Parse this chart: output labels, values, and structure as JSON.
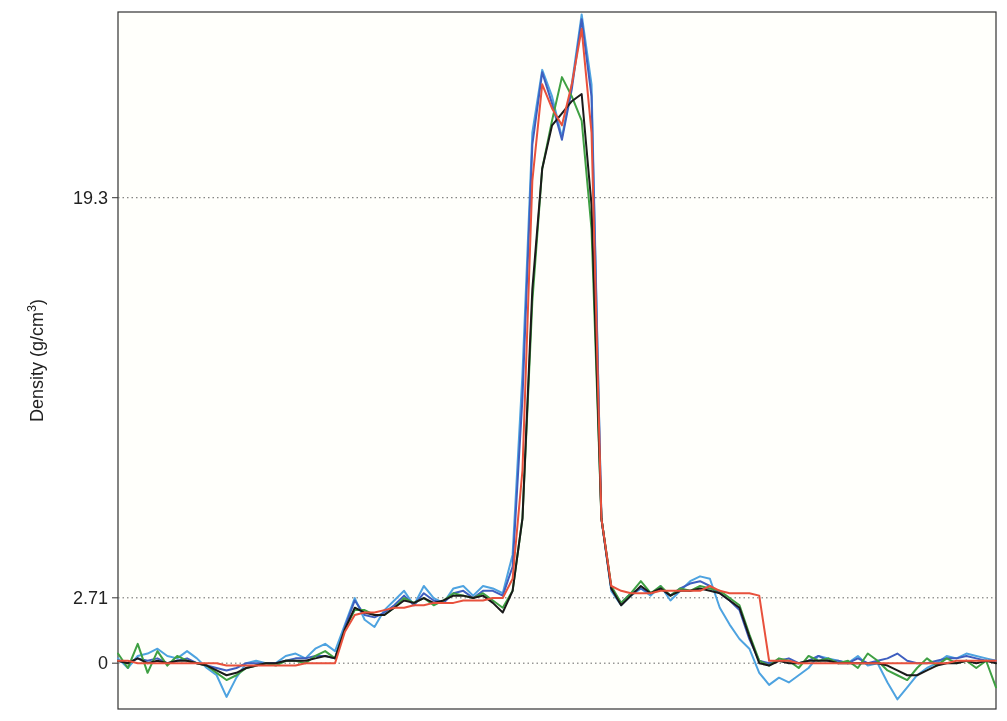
{
  "chart_data": {
    "type": "line",
    "ylabel": "Density (g/cm$^{3}$)",
    "categories": [
      null,
      null,
      null,
      null,
      null,
      null,
      null,
      null,
      null,
      null,
      null,
      null,
      null,
      null,
      null,
      null,
      null,
      null,
      null,
      null,
      null,
      null,
      null,
      null,
      null,
      null,
      null,
      null,
      null,
      null,
      null,
      null,
      null,
      null,
      null,
      null,
      null,
      null,
      null,
      null,
      null,
      null,
      null,
      null,
      null,
      null,
      null,
      null,
      null,
      null,
      null,
      null,
      null,
      null,
      null,
      null,
      null,
      null,
      null,
      null,
      null,
      null,
      null,
      null,
      null,
      null,
      null,
      null,
      null,
      null,
      null,
      null,
      null,
      null,
      null,
      null,
      null,
      null,
      null,
      null,
      null,
      null,
      null,
      null,
      null,
      null,
      null,
      null,
      null,
      null
    ],
    "ylim": [
      -1.9,
      27
    ],
    "yticks": [
      0,
      2.71,
      19.3
    ],
    "grid": "y",
    "line_style": "solid",
    "marker": "none",
    "series": [
      {
        "color": "#4ea3e0",
        "values": [
          0.2,
          -0.2,
          0.3,
          0.4,
          0.6,
          0.3,
          0.2,
          0.5,
          0.2,
          -0.2,
          -0.5,
          -1.4,
          -0.6,
          0,
          0.1,
          0,
          0,
          0.3,
          0.4,
          0.2,
          0.6,
          0.8,
          0.5,
          1.6,
          2.7,
          1.8,
          1.5,
          2.2,
          2.6,
          3.0,
          2.4,
          3.2,
          2.7,
          2.5,
          3.1,
          3.2,
          2.8,
          3.2,
          3.1,
          2.9,
          4.5,
          12,
          22,
          24.6,
          23.5,
          21.8,
          24,
          26.9,
          24,
          6,
          3.0,
          2.4,
          2.8,
          3.1,
          2.8,
          3.2,
          2.6,
          3.0,
          3.4,
          3.6,
          3.5,
          2.3,
          1.6,
          1.0,
          0.6,
          -0.4,
          -0.9,
          -0.6,
          -0.8,
          -0.5,
          -0.2,
          0.3,
          0.2,
          0.1,
          0,
          0.3,
          -0.1,
          0,
          -0.8,
          -1.5,
          -1.0,
          -0.5,
          -0.2,
          0,
          0.3,
          0.2,
          0.4,
          0.3,
          0.2,
          0.1
        ]
      },
      {
        "color": "#3f5fbf",
        "values": [
          0.1,
          0,
          0.2,
          0.1,
          0.2,
          0,
          0.1,
          0.2,
          0,
          -0.1,
          -0.2,
          -0.3,
          -0.2,
          0,
          0,
          0,
          0,
          0.1,
          0.2,
          0.2,
          0.3,
          0.3,
          0.2,
          1.5,
          2.6,
          2.0,
          1.9,
          2.1,
          2.4,
          2.8,
          2.4,
          2.9,
          2.6,
          2.5,
          2.9,
          3.0,
          2.7,
          3.0,
          3.0,
          2.8,
          4,
          11,
          21.5,
          24.5,
          23.2,
          21.7,
          23.8,
          26.7,
          23.5,
          6,
          3.1,
          2.5,
          2.9,
          3.1,
          2.9,
          3.1,
          2.8,
          3.1,
          3.3,
          3.4,
          3.2,
          2.9,
          2.6,
          2.2,
          1.0,
          0.1,
          0,
          0.1,
          0.2,
          0,
          0.1,
          0.3,
          0.1,
          0.1,
          0,
          0.2,
          0,
          0.1,
          0.2,
          0.4,
          0.1,
          0,
          0,
          0.1,
          0.2,
          0.2,
          0.3,
          0.2,
          0.1,
          0.1
        ]
      },
      {
        "color": "#3fa043",
        "values": [
          0.4,
          -0.2,
          0.8,
          -0.4,
          0.5,
          -0.1,
          0.3,
          0.1,
          0,
          -0.1,
          -0.4,
          -0.7,
          -0.5,
          -0.2,
          -0.1,
          0,
          -0.1,
          0.1,
          0.1,
          0,
          0.3,
          0.5,
          0.2,
          1.4,
          2.2,
          2.2,
          2.0,
          2.0,
          2.3,
          2.7,
          2.5,
          2.7,
          2.4,
          2.6,
          2.9,
          2.8,
          2.7,
          2.9,
          2.6,
          2.3,
          3.0,
          6,
          15,
          20.5,
          22.5,
          24.3,
          23.5,
          22.5,
          18,
          6,
          3.2,
          2.5,
          2.9,
          3.4,
          2.9,
          3.2,
          2.8,
          3.1,
          3.0,
          3.2,
          3.1,
          3.0,
          2.7,
          2.4,
          1.2,
          0.1,
          -0.1,
          0.2,
          0.1,
          -0.2,
          0.3,
          0.1,
          0.2,
          0,
          0.1,
          -0.2,
          0.4,
          0.1,
          -0.3,
          -0.5,
          -0.7,
          -0.2,
          0.2,
          -0.1,
          0.2,
          0,
          0.1,
          -0.2,
          0.1,
          -1.0
        ]
      },
      {
        "color": "#1a1a1a",
        "values": [
          0.1,
          0,
          0.2,
          0,
          0.1,
          0,
          0.1,
          0.1,
          0,
          -0.1,
          -0.3,
          -0.5,
          -0.4,
          -0.2,
          -0.1,
          0,
          0,
          0.1,
          0.1,
          0.1,
          0.2,
          0.3,
          0.2,
          1.4,
          2.3,
          2.1,
          2.0,
          2.0,
          2.3,
          2.6,
          2.5,
          2.7,
          2.5,
          2.6,
          2.8,
          2.8,
          2.7,
          2.8,
          2.5,
          2.1,
          3.0,
          6,
          15.5,
          20.5,
          22.3,
          22.8,
          23.3,
          23.6,
          19,
          6,
          3.1,
          2.4,
          2.8,
          3.2,
          2.9,
          3.1,
          2.8,
          3.0,
          3.0,
          3.1,
          3.0,
          2.9,
          2.6,
          2.3,
          1.1,
          0,
          -0.1,
          0.1,
          0,
          0,
          0.1,
          0.1,
          0.1,
          0,
          0,
          0,
          0,
          0,
          -0.1,
          -0.3,
          -0.5,
          -0.5,
          -0.3,
          -0.1,
          0,
          0,
          0.1,
          0,
          0.1,
          0
        ]
      },
      {
        "color": "#e8513c",
        "values": [
          0.1,
          0.1,
          0,
          0,
          0,
          0,
          0,
          0,
          0,
          0,
          0,
          -0.1,
          -0.1,
          -0.1,
          -0.1,
          -0.1,
          -0.1,
          -0.1,
          -0.1,
          0,
          0,
          0,
          0,
          1.3,
          2.0,
          2.1,
          2.1,
          2.2,
          2.3,
          2.3,
          2.4,
          2.4,
          2.5,
          2.5,
          2.5,
          2.6,
          2.6,
          2.6,
          2.7,
          2.7,
          3.5,
          8,
          20,
          24.0,
          23.0,
          22.3,
          24.0,
          26.3,
          22,
          6,
          3.2,
          3.0,
          2.9,
          2.9,
          2.9,
          3.0,
          3.0,
          3.0,
          3.0,
          3.0,
          3.2,
          3.0,
          2.9,
          2.9,
          2.9,
          2.8,
          0.1,
          0.1,
          0.1,
          0,
          0,
          0,
          0,
          0,
          0,
          0,
          0,
          0,
          0,
          0,
          0,
          0,
          0,
          0,
          0,
          0.1,
          0.1,
          0.1,
          0.1,
          0.1
        ]
      }
    ]
  }
}
